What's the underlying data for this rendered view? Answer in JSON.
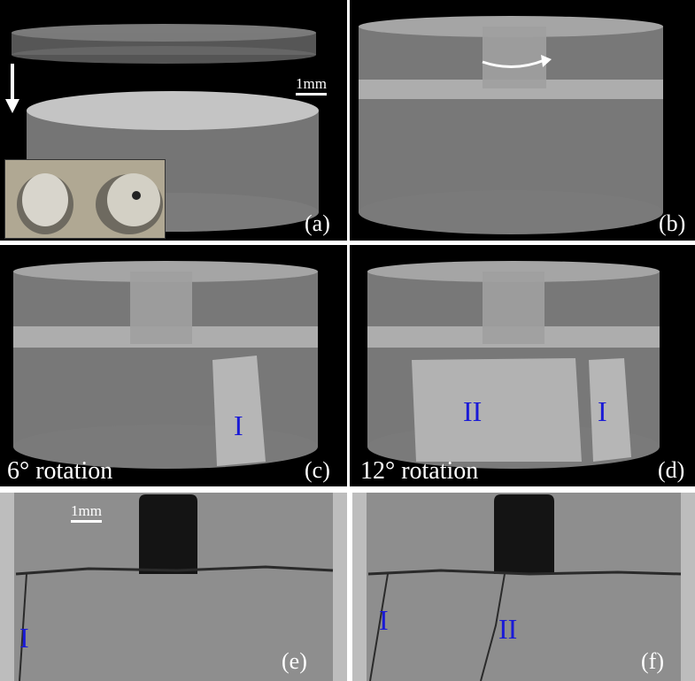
{
  "panels": {
    "a": {
      "label": "(a)",
      "scalebar": "1mm"
    },
    "b": {
      "label": "(b)"
    },
    "c": {
      "label": "(c)",
      "rotation": "6° rotation",
      "marks": [
        "I"
      ]
    },
    "d": {
      "label": "(d)",
      "rotation": "12° rotation",
      "marks": [
        "II",
        "I"
      ]
    },
    "e": {
      "label": "(e)",
      "scalebar": "1mm",
      "marks": [
        "I"
      ]
    },
    "f": {
      "label": "(f)",
      "marks": [
        "I",
        "II"
      ]
    }
  },
  "colors": {
    "mark": "#1a1ad6",
    "background": "#000000",
    "ct_gray": "#8c8c8c"
  }
}
